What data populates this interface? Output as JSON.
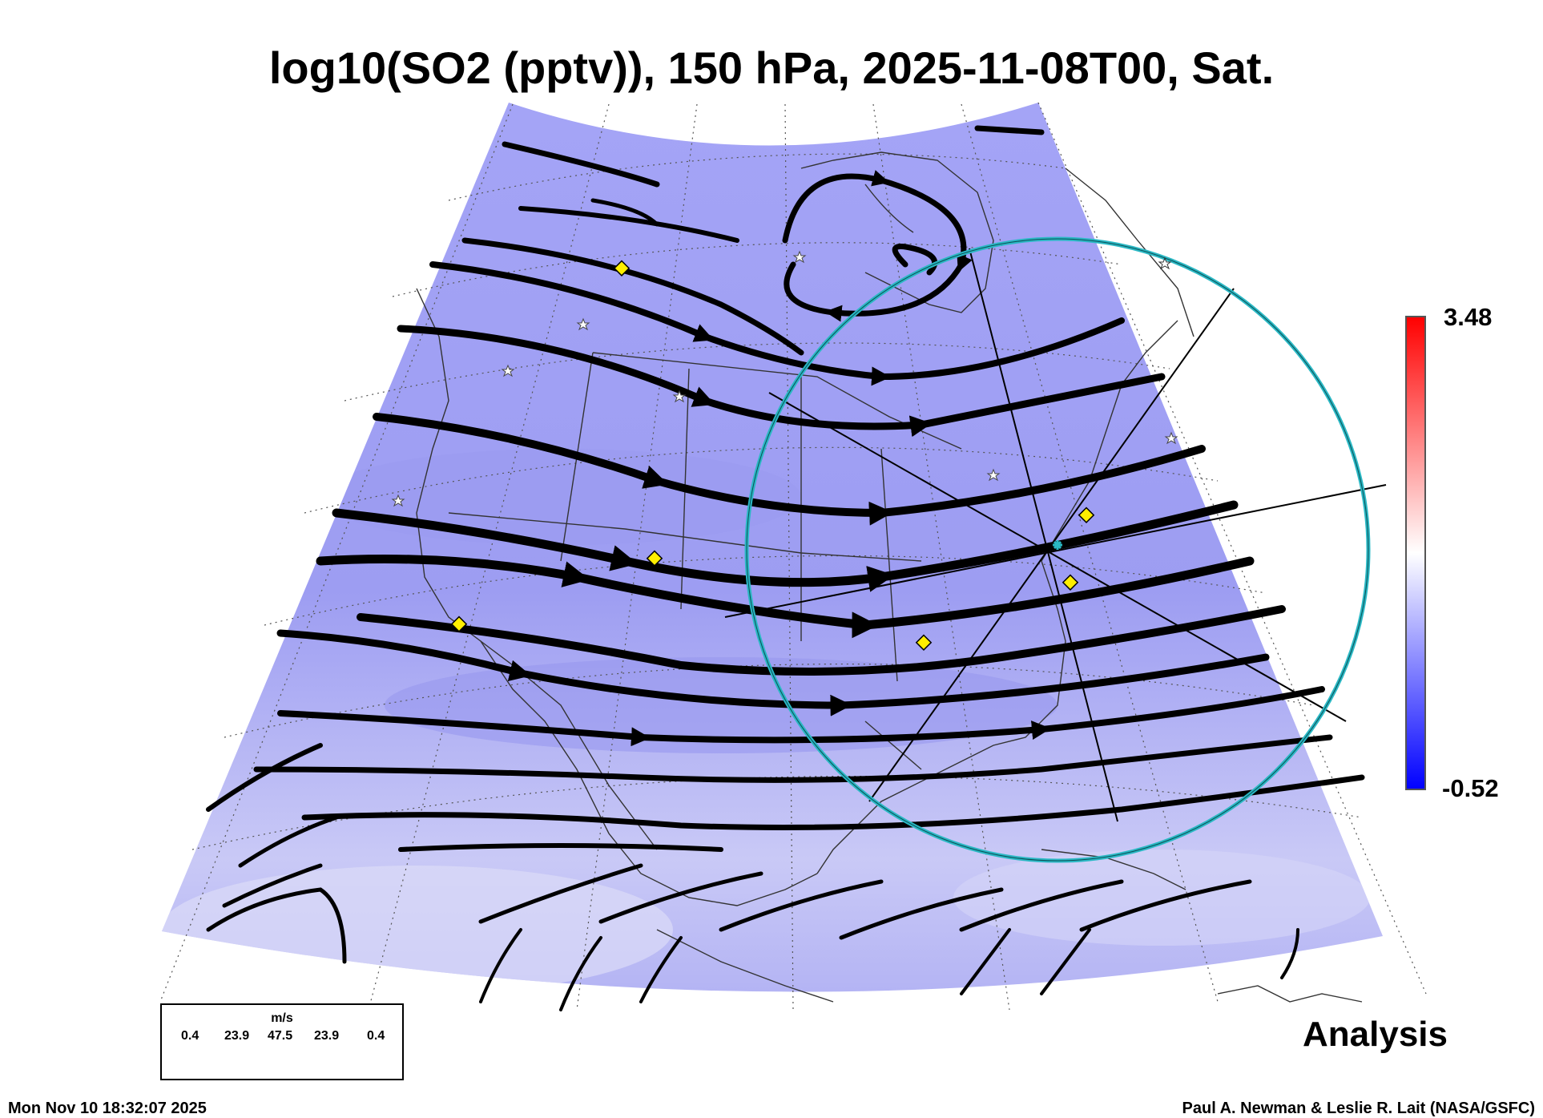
{
  "title": "log10(SO2 (pptv)), 150 hPa, 2025-11-08T00, Sat.",
  "colorbar": {
    "max_label": "3.48",
    "min_label": "-0.52",
    "top_color": "#ff0000",
    "mid_color": "#ffffff",
    "bottom_color": "#0000ff"
  },
  "legend": {
    "unit": "m/s",
    "values": [
      "0.4",
      "23.9",
      "47.5",
      "23.9",
      "0.4"
    ]
  },
  "analysis_label": "Analysis",
  "timestamp": "Mon Nov 10 18:32:07 2025",
  "credit": "Paul A. Newman & Leslie R. Lait (NASA/GSFC)",
  "map": {
    "field_color": "#a6a6f4",
    "circle_color": "#2ab8c4",
    "marker_color": "#ffee00",
    "star_color": "#ffffff"
  }
}
